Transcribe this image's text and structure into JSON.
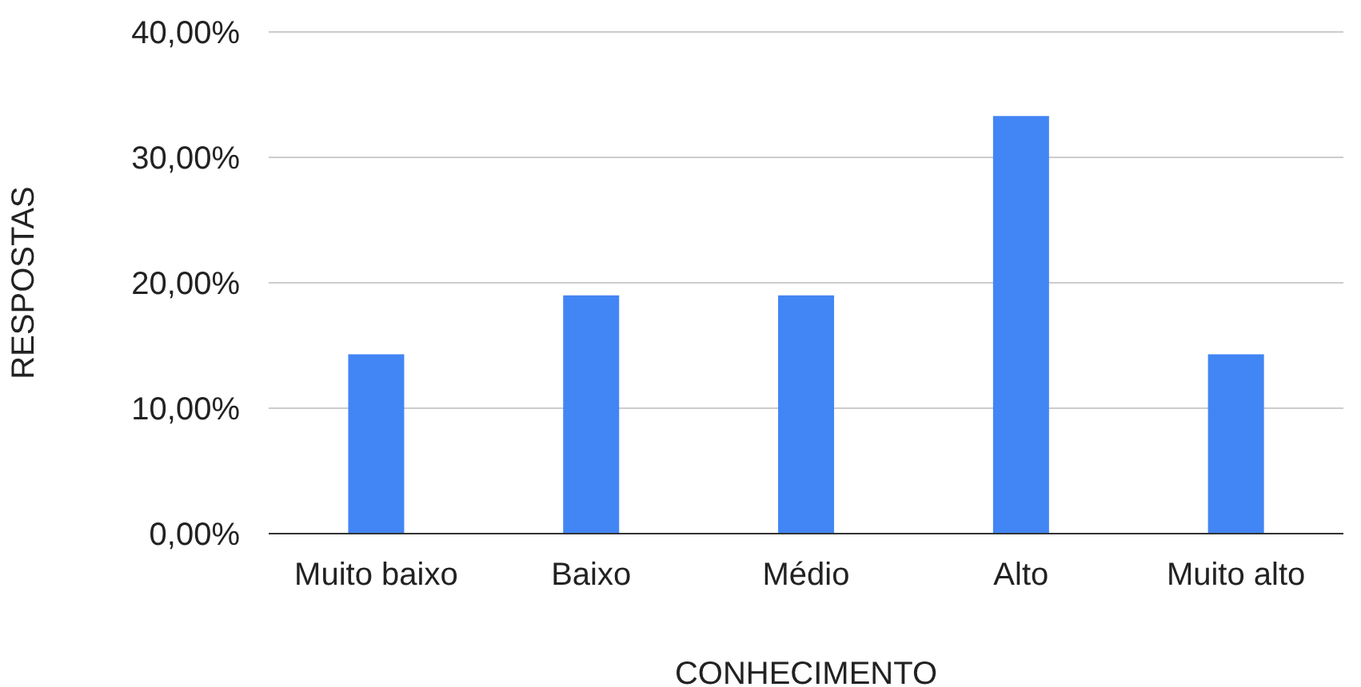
{
  "chart_data": {
    "type": "bar",
    "xlabel": "CONHECIMENTO",
    "ylabel": "RESPOSTAS",
    "categories": [
      "Muito baixo",
      "Baixo",
      "Médio",
      "Alto",
      "Muito alto"
    ],
    "values": [
      14.3,
      19,
      19,
      33.3,
      14.3
    ],
    "color": "#4285f4",
    "ylim": [
      0,
      40
    ],
    "yticks": [
      {
        "value": 0,
        "label": "0,00%"
      },
      {
        "value": 10,
        "label": "10,00%"
      },
      {
        "value": 20,
        "label": "20,00%"
      },
      {
        "value": 30,
        "label": "30,00%"
      },
      {
        "value": 40,
        "label": "40,00%"
      }
    ],
    "grid": "y",
    "legend": false
  }
}
